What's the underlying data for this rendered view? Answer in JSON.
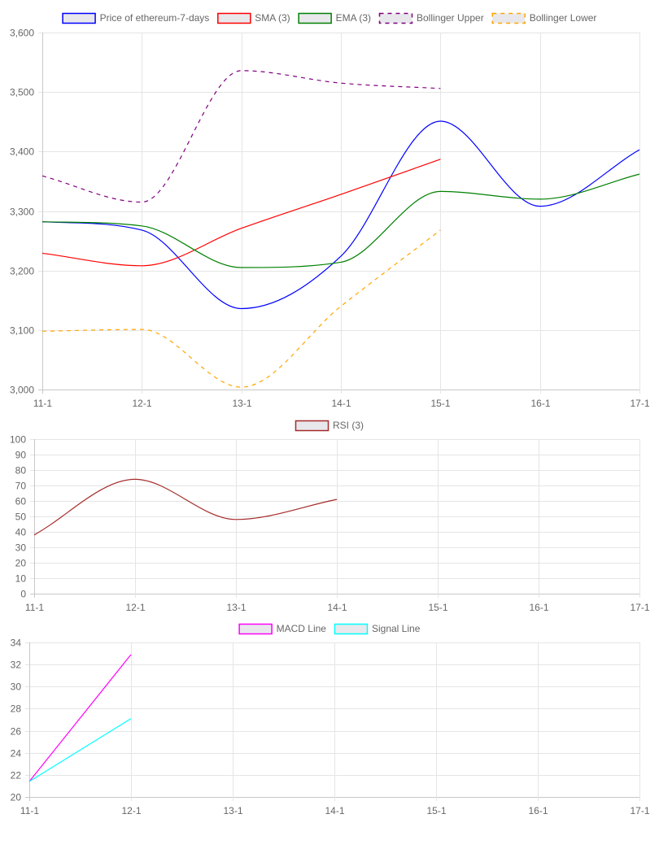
{
  "chart_data": [
    {
      "type": "line",
      "categories": [
        "11-1",
        "12-1",
        "13-1",
        "14-1",
        "15-1",
        "16-1",
        "17-1"
      ],
      "ylim": [
        3000,
        3600
      ],
      "yticks": [
        3000,
        3100,
        3200,
        3300,
        3400,
        3500,
        3600
      ],
      "ytick_labels": [
        "3,000",
        "3,100",
        "3,200",
        "3,300",
        "3,400",
        "3,500",
        "3,600"
      ],
      "grid": true,
      "legend_position": "top",
      "series": [
        {
          "name": "Price of ethereum-7-days",
          "color": "#0000ff",
          "dashed": false,
          "values": [
            3282,
            3268,
            3136,
            3224,
            3451,
            3308,
            3403
          ]
        },
        {
          "name": "SMA (3)",
          "color": "#ff0000",
          "dashed": false,
          "values": [
            3229,
            3208,
            3271,
            3328,
            3387,
            null,
            null
          ]
        },
        {
          "name": "EMA (3)",
          "color": "#008000",
          "dashed": false,
          "values": [
            3282,
            3275,
            3205,
            3214,
            3333,
            3320,
            3362
          ]
        },
        {
          "name": "Bollinger Upper",
          "color": "#800080",
          "dashed": true,
          "values": [
            3359,
            3315,
            3536,
            3515,
            3506,
            null,
            null
          ]
        },
        {
          "name": "Bollinger Lower",
          "color": "#ffa500",
          "dashed": true,
          "values": [
            3098,
            3101,
            3004,
            3140,
            3268,
            null,
            null
          ]
        }
      ]
    },
    {
      "type": "line",
      "categories": [
        "11-1",
        "12-1",
        "13-1",
        "14-1",
        "15-1",
        "16-1",
        "17-1"
      ],
      "ylim": [
        0,
        100
      ],
      "yticks": [
        0,
        10,
        20,
        30,
        40,
        50,
        60,
        70,
        80,
        90,
        100
      ],
      "ytick_labels": [
        "0",
        "10",
        "20",
        "30",
        "40",
        "50",
        "60",
        "70",
        "80",
        "90",
        "100"
      ],
      "grid": true,
      "legend_position": "top",
      "series": [
        {
          "name": "RSI (3)",
          "color": "#a52a2a",
          "dashed": false,
          "values": [
            38,
            74,
            48,
            61,
            null,
            null,
            null
          ]
        }
      ]
    },
    {
      "type": "line",
      "categories": [
        "11-1",
        "12-1",
        "13-1",
        "14-1",
        "15-1",
        "16-1",
        "17-1"
      ],
      "ylim": [
        20,
        34
      ],
      "yticks": [
        20,
        22,
        24,
        26,
        28,
        30,
        32,
        34
      ],
      "ytick_labels": [
        "20",
        "22",
        "24",
        "26",
        "28",
        "30",
        "32",
        "34"
      ],
      "grid": true,
      "legend_position": "top",
      "series": [
        {
          "name": "MACD Line",
          "color": "#ff00ff",
          "dashed": false,
          "values": [
            21.4,
            32.9,
            null,
            null,
            null,
            null,
            null
          ]
        },
        {
          "name": "Signal Line",
          "color": "#00ffff",
          "dashed": false,
          "values": [
            21.4,
            27.1,
            null,
            null,
            null,
            null,
            null
          ]
        }
      ]
    }
  ]
}
